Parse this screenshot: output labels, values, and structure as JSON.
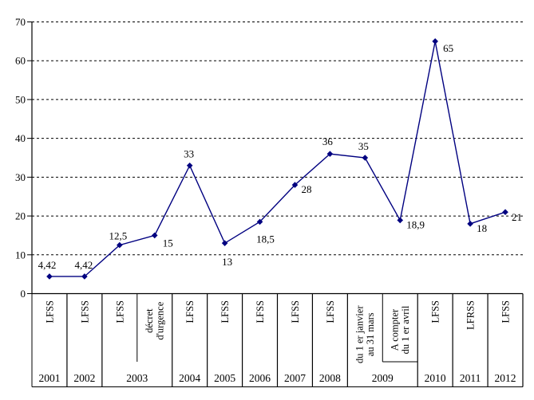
{
  "chart_data": {
    "type": "line",
    "title": "",
    "legend": null,
    "grid": "horizontal-dashed",
    "series_color": "#000080",
    "marker": "diamond",
    "y_axis": {
      "min": 0,
      "max": 70,
      "step": 10,
      "tick_labels": [
        "0",
        "10",
        "20",
        "30",
        "40",
        "50",
        "60",
        "70"
      ]
    },
    "x_axis": {
      "level_1_years": [
        "2001",
        "2002",
        "2003",
        "2004",
        "2005",
        "2006",
        "2007",
        "2008",
        "2009",
        "2010",
        "2011",
        "2012"
      ]
    },
    "groups": [
      {
        "year": "2001",
        "subs": [
          {
            "label": "LFSS",
            "label_lines": [
              "LFSS"
            ],
            "value": 4.42,
            "value_label": "4,42",
            "label_placement": "above"
          }
        ]
      },
      {
        "year": "2002",
        "subs": [
          {
            "label": "LFSS",
            "label_lines": [
              "LFSS"
            ],
            "value": 4.42,
            "value_label": "4,42",
            "label_placement": "above"
          }
        ]
      },
      {
        "year": "2003",
        "subs": [
          {
            "label": "LFSS",
            "label_lines": [
              "LFSS"
            ],
            "value": 12.5,
            "value_label": "12,5",
            "label_placement": "above"
          },
          {
            "label": "décret d'urgence",
            "label_lines": [
              "décret",
              "d'urgence"
            ],
            "value": 15,
            "value_label": "15",
            "label_placement": "right-below"
          }
        ]
      },
      {
        "year": "2004",
        "subs": [
          {
            "label": "LFSS",
            "label_lines": [
              "LFSS"
            ],
            "value": 33,
            "value_label": "33",
            "label_placement": "above"
          }
        ]
      },
      {
        "year": "2005",
        "subs": [
          {
            "label": "LFSS",
            "label_lines": [
              "LFSS"
            ],
            "value": 13,
            "value_label": "13",
            "label_placement": "below"
          }
        ]
      },
      {
        "year": "2006",
        "subs": [
          {
            "label": "LFSS",
            "label_lines": [
              "LFSS"
            ],
            "value": 18.5,
            "value_label": "18,5",
            "label_placement": "below"
          }
        ]
      },
      {
        "year": "2007",
        "subs": [
          {
            "label": "LFSS",
            "label_lines": [
              "LFSS"
            ],
            "value": 28,
            "value_label": "28",
            "label_placement": "right"
          }
        ]
      },
      {
        "year": "2008",
        "subs": [
          {
            "label": "LFSS",
            "label_lines": [
              "LFSS"
            ],
            "value": 36,
            "value_label": "36",
            "label_placement": "above"
          }
        ]
      },
      {
        "year": "2009",
        "subs": [
          {
            "label": "du 1 er janvier au 31 mars",
            "label_lines": [
              "du 1 er janvier",
              "au 31 mars"
            ],
            "value": 35,
            "value_label": "35",
            "label_placement": "above"
          },
          {
            "label": "A compter du 1 er avril",
            "label_lines": [
              "A compter",
              "du 1 er avril"
            ],
            "value": 18.9,
            "value_label": "18,9",
            "label_placement": "right",
            "bottom_rule": true
          }
        ]
      },
      {
        "year": "2010",
        "subs": [
          {
            "label": "LFSS",
            "label_lines": [
              "LFSS"
            ],
            "value": 65,
            "value_label": "65",
            "label_placement": "right"
          }
        ]
      },
      {
        "year": "2011",
        "subs": [
          {
            "label": "LFRSS",
            "label_lines": [
              "LFRSS"
            ],
            "value": 18,
            "value_label": "18",
            "label_placement": "right-below"
          }
        ]
      },
      {
        "year": "2012",
        "subs": [
          {
            "label": "LFSS",
            "label_lines": [
              "LFSS"
            ],
            "value": 21,
            "value_label": "21",
            "label_placement": "right"
          }
        ]
      }
    ]
  },
  "colors": {
    "line": "#000080",
    "marker": "#000080",
    "grid": "#000000",
    "axis": "#000000",
    "text": "#000000",
    "background": "#ffffff"
  }
}
